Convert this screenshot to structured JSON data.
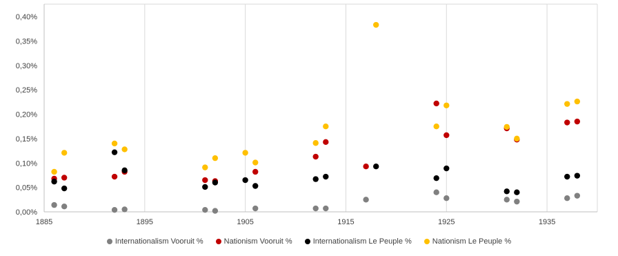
{
  "chart_data": {
    "type": "scatter",
    "title": "",
    "xlabel": "",
    "ylabel": "",
    "xlim": [
      1885,
      1940
    ],
    "ylim": [
      0,
      0.4
    ],
    "x_ticks": [
      1885,
      1895,
      1905,
      1915,
      1925,
      1935
    ],
    "y_ticks": [
      "0,00%",
      "0,05%",
      "0,10%",
      "0,15%",
      "0,20%",
      "0,25%",
      "0,30%",
      "0,35%",
      "0,40%"
    ],
    "y_tick_values": [
      0,
      0.05,
      0.1,
      0.15,
      0.2,
      0.25,
      0.3,
      0.35,
      0.4
    ],
    "grid": "vertical",
    "legend_position": "bottom",
    "series": [
      {
        "name": "Internationalism Vooruit %",
        "color": "#808080",
        "points": [
          [
            1886,
            0.014
          ],
          [
            1887,
            0.011
          ],
          [
            1892,
            0.004
          ],
          [
            1893,
            0.005
          ],
          [
            1901,
            0.004
          ],
          [
            1902,
            0.002
          ],
          [
            1906,
            0.007
          ],
          [
            1912,
            0.007
          ],
          [
            1913,
            0.007
          ],
          [
            1917,
            0.025
          ],
          [
            1924,
            0.04
          ],
          [
            1925,
            0.028
          ],
          [
            1931,
            0.025
          ],
          [
            1932,
            0.021
          ],
          [
            1937,
            0.028
          ],
          [
            1938,
            0.033
          ]
        ]
      },
      {
        "name": "Nationism Vooruit %",
        "color": "#c00000",
        "points": [
          [
            1886,
            0.068
          ],
          [
            1887,
            0.07
          ],
          [
            1892,
            0.072
          ],
          [
            1893,
            0.082
          ],
          [
            1901,
            0.065
          ],
          [
            1902,
            0.063
          ],
          [
            1906,
            0.082
          ],
          [
            1912,
            0.113
          ],
          [
            1913,
            0.143
          ],
          [
            1917,
            0.093
          ],
          [
            1924,
            0.222
          ],
          [
            1925,
            0.157
          ],
          [
            1931,
            0.171
          ],
          [
            1932,
            0.148
          ],
          [
            1937,
            0.183
          ],
          [
            1938,
            0.185
          ]
        ]
      },
      {
        "name": "Internationalism Le Peuple %",
        "color": "#000000",
        "points": [
          [
            1886,
            0.062
          ],
          [
            1887,
            0.048
          ],
          [
            1892,
            0.122
          ],
          [
            1893,
            0.085
          ],
          [
            1901,
            0.051
          ],
          [
            1902,
            0.06
          ],
          [
            1905,
            0.065
          ],
          [
            1906,
            0.053
          ],
          [
            1912,
            0.067
          ],
          [
            1913,
            0.072
          ],
          [
            1918,
            0.093
          ],
          [
            1924,
            0.069
          ],
          [
            1925,
            0.089
          ],
          [
            1931,
            0.042
          ],
          [
            1932,
            0.04
          ],
          [
            1937,
            0.072
          ],
          [
            1938,
            0.074
          ]
        ]
      },
      {
        "name": "Nationism Le Peuple %",
        "color": "#ffc000",
        "points": [
          [
            1886,
            0.082
          ],
          [
            1887,
            0.121
          ],
          [
            1892,
            0.14
          ],
          [
            1893,
            0.128
          ],
          [
            1901,
            0.091
          ],
          [
            1902,
            0.11
          ],
          [
            1905,
            0.121
          ],
          [
            1906,
            0.101
          ],
          [
            1912,
            0.141
          ],
          [
            1913,
            0.175
          ],
          [
            1918,
            0.383
          ],
          [
            1924,
            0.175
          ],
          [
            1925,
            0.218
          ],
          [
            1931,
            0.174
          ],
          [
            1932,
            0.15
          ],
          [
            1937,
            0.221
          ],
          [
            1938,
            0.226
          ]
        ]
      }
    ]
  }
}
